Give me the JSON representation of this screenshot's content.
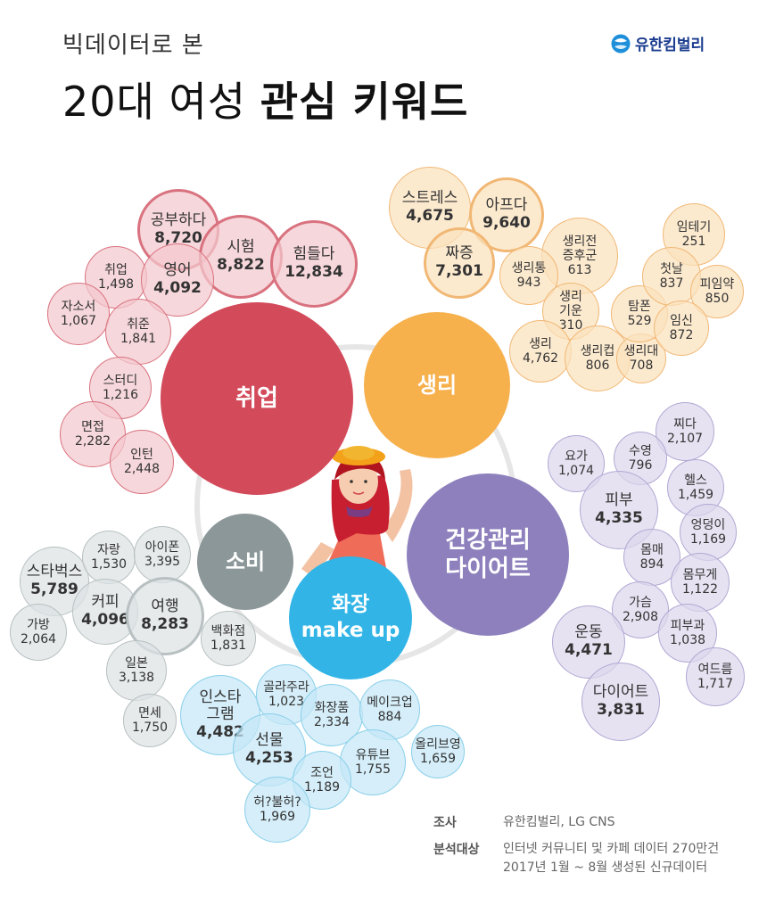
{
  "header": {
    "subtitle": "빅데이터로 본",
    "title_plain": "20대 여성 ",
    "title_bold": "관심 키워드",
    "logo_text": "유한킴벌리"
  },
  "colors": {
    "job": "#d34b5b",
    "job_light": "#f3c8cd",
    "job_line": "#d9727f",
    "period": "#f6b04c",
    "period_light": "#fbe2bd",
    "period_line": "#f1b774",
    "health": "#8e80bd",
    "health_light": "#dcd7ec",
    "health_line": "#b2a8d4",
    "spend": "#8c9799",
    "spend_light": "#dde2e3",
    "spend_line": "#b8c0c2",
    "makeup": "#32b5e6",
    "makeup_light": "#c5e8f6",
    "makeup_line": "#89cfe9"
  },
  "hubs": [
    {
      "id": "job",
      "label": "취업"
    },
    {
      "id": "period",
      "label": "생리"
    },
    {
      "id": "health",
      "label": "건강관리\n다이어트"
    },
    {
      "id": "spend",
      "label": "소비"
    },
    {
      "id": "makeup",
      "label": "화장\nmake up"
    }
  ],
  "bubbles": [
    {
      "group": "job",
      "label": "공부하다",
      "value": "8,720",
      "big": true,
      "hl": true
    },
    {
      "group": "job",
      "label": "시험",
      "value": "8,822",
      "big": true,
      "hl": true
    },
    {
      "group": "job",
      "label": "힘들다",
      "value": "12,834",
      "big": true,
      "hl": true
    },
    {
      "group": "job",
      "label": "취업",
      "value": "1,498"
    },
    {
      "group": "job",
      "label": "영어",
      "value": "4,092",
      "big": true
    },
    {
      "group": "job",
      "label": "자소서",
      "value": "1,067"
    },
    {
      "group": "job",
      "label": "취준",
      "value": "1,841"
    },
    {
      "group": "job",
      "label": "스터디",
      "value": "1,216"
    },
    {
      "group": "job",
      "label": "면접",
      "value": "2,282"
    },
    {
      "group": "job",
      "label": "인턴",
      "value": "2,448"
    },
    {
      "group": "period",
      "label": "스트레스",
      "value": "4,675",
      "big": true
    },
    {
      "group": "period",
      "label": "아프다",
      "value": "9,640",
      "big": true,
      "hl": true
    },
    {
      "group": "period",
      "label": "짜증",
      "value": "7,301",
      "big": true,
      "hl": true
    },
    {
      "group": "period",
      "label": "생리전\n증후군",
      "value": "613"
    },
    {
      "group": "period",
      "label": "생리통",
      "value": "943"
    },
    {
      "group": "period",
      "label": "생리\n기운",
      "value": "310"
    },
    {
      "group": "period",
      "label": "생리",
      "value": "4,762"
    },
    {
      "group": "period",
      "label": "생리컵",
      "value": "806"
    },
    {
      "group": "period",
      "label": "생리대",
      "value": "708"
    },
    {
      "group": "period",
      "label": "탐폰",
      "value": "529"
    },
    {
      "group": "period",
      "label": "임테기",
      "value": "251"
    },
    {
      "group": "period",
      "label": "첫날",
      "value": "837"
    },
    {
      "group": "period",
      "label": "피임약",
      "value": "850"
    },
    {
      "group": "period",
      "label": "임신",
      "value": "872"
    },
    {
      "group": "health",
      "label": "찌다",
      "value": "2,107"
    },
    {
      "group": "health",
      "label": "요가",
      "value": "1,074"
    },
    {
      "group": "health",
      "label": "수영",
      "value": "796"
    },
    {
      "group": "health",
      "label": "헬스",
      "value": "1,459"
    },
    {
      "group": "health",
      "label": "피부",
      "value": "4,335",
      "big": true
    },
    {
      "group": "health",
      "label": "엉덩이",
      "value": "1,169"
    },
    {
      "group": "health",
      "label": "몸매",
      "value": "894"
    },
    {
      "group": "health",
      "label": "몸무게",
      "value": "1,122"
    },
    {
      "group": "health",
      "label": "가슴",
      "value": "2,908"
    },
    {
      "group": "health",
      "label": "운동",
      "value": "4,471",
      "big": true
    },
    {
      "group": "health",
      "label": "피부과",
      "value": "1,038"
    },
    {
      "group": "health",
      "label": "여드름",
      "value": "1,717"
    },
    {
      "group": "health",
      "label": "다이어트",
      "value": "3,831",
      "big": true
    },
    {
      "group": "spend",
      "label": "스타벅스",
      "value": "5,789",
      "big": true
    },
    {
      "group": "spend",
      "label": "자랑",
      "value": "1,530"
    },
    {
      "group": "spend",
      "label": "아이폰",
      "value": "3,395"
    },
    {
      "group": "spend",
      "label": "커피",
      "value": "4,096",
      "big": true
    },
    {
      "group": "spend",
      "label": "여행",
      "value": "8,283",
      "big": true,
      "hl": true
    },
    {
      "group": "spend",
      "label": "가방",
      "value": "2,064"
    },
    {
      "group": "spend",
      "label": "일본",
      "value": "3,138"
    },
    {
      "group": "spend",
      "label": "면세",
      "value": "1,750"
    },
    {
      "group": "spend",
      "label": "백화점",
      "value": "1,831"
    },
    {
      "group": "makeup",
      "label": "인스타\n그램",
      "value": "4,482",
      "big": true
    },
    {
      "group": "makeup",
      "label": "골라주라",
      "value": "1,023"
    },
    {
      "group": "makeup",
      "label": "화장품",
      "value": "2,334"
    },
    {
      "group": "makeup",
      "label": "메이크업",
      "value": "884"
    },
    {
      "group": "makeup",
      "label": "선물",
      "value": "4,253",
      "big": true
    },
    {
      "group": "makeup",
      "label": "올리브영",
      "value": "1,659"
    },
    {
      "group": "makeup",
      "label": "유튜브",
      "value": "1,755"
    },
    {
      "group": "makeup",
      "label": "조언",
      "value": "1,189"
    },
    {
      "group": "makeup",
      "label": "허?불허?",
      "value": "1,969"
    }
  ],
  "source": {
    "k1": "조사",
    "v1": "유한킴벌리, LG CNS",
    "k2": "분석대상",
    "v2a": "인터넷 커뮤니티 및 카페 데이터 270만건",
    "v2b": "2017년 1월 ~ 8월 생성된 신규데이터"
  }
}
